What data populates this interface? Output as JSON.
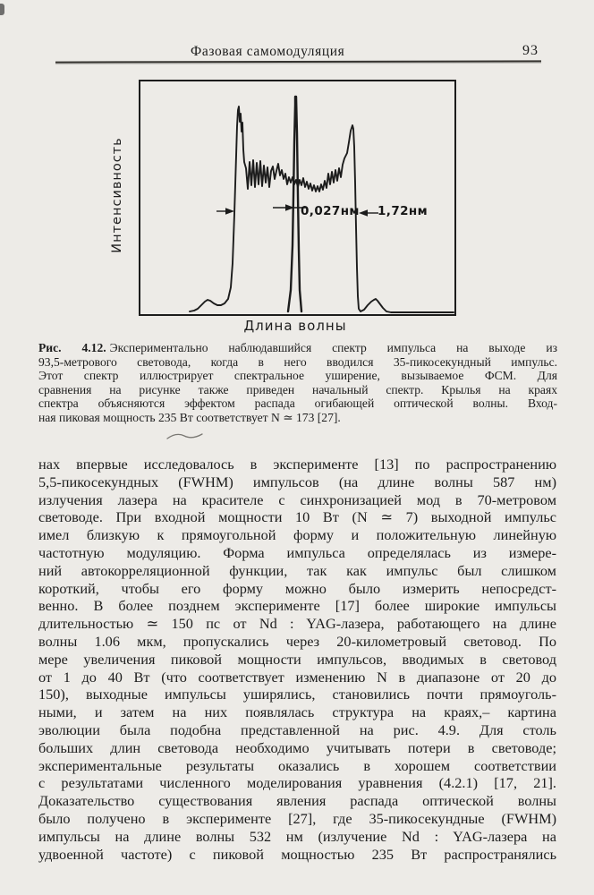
{
  "colors": {
    "paper": "#edebe7",
    "ink": "#1c1c1c"
  },
  "header": {
    "title": "Фазовая самомодуляция",
    "page_number": "93"
  },
  "figure": {
    "y_axis_label": "Интенсивность",
    "x_axis_label": "Длина волны",
    "annotations": {
      "narrow_label": "0,027нм",
      "wide_label": "1,72нм"
    },
    "chart": {
      "type": "line",
      "title": "Экспериментальный спектр импульса на выходе 93,5-метрового световода (уширение за счёт ФСМ) и начальный спектр",
      "xlabel": "Длина волны",
      "ylabel": "Интенсивность",
      "x_units": "нм",
      "grid": false,
      "legend": false,
      "series_meta": [
        {
          "name": "broad_spectrum",
          "description": "уширенный выходной спектр, полная ширина 1,72 нм, двугорбый с шумовой структурой"
        },
        {
          "name": "initial_spectrum",
          "description": "начальный (входной) узкий спектр, ширина 0,027 нм"
        }
      ],
      "annotation_values": [
        {
          "label": "0,027нм",
          "value_nm": 0.027,
          "refers_to": "initial_spectrum width"
        },
        {
          "label": "1,72нм",
          "value_nm": 1.72,
          "refers_to": "broad_spectrum width"
        }
      ],
      "curves": {
        "broad_spectrum": [
          [
            57,
            259
          ],
          [
            62,
            258
          ],
          [
            66,
            256
          ],
          [
            70,
            252
          ],
          [
            74,
            248
          ],
          [
            77,
            246
          ],
          [
            80,
            247
          ],
          [
            84,
            250
          ],
          [
            88,
            252
          ],
          [
            92,
            252
          ],
          [
            96,
            250
          ],
          [
            100,
            245
          ],
          [
            103,
            232
          ],
          [
            105,
            205
          ],
          [
            107,
            150
          ],
          [
            109,
            85
          ],
          [
            110,
            52
          ],
          [
            111,
            34
          ],
          [
            112,
            30
          ],
          [
            113,
            47
          ],
          [
            114,
            38
          ],
          [
            115,
            58
          ],
          [
            116,
            48
          ],
          [
            117,
            78
          ],
          [
            118,
            92
          ],
          [
            120,
            99
          ],
          [
            122,
            122
          ],
          [
            124,
            92
          ],
          [
            126,
            118
          ],
          [
            128,
            90
          ],
          [
            130,
            120
          ],
          [
            132,
            93
          ],
          [
            134,
            117
          ],
          [
            136,
            91
          ],
          [
            138,
            119
          ],
          [
            140,
            96
          ],
          [
            142,
            115
          ],
          [
            144,
            98
          ],
          [
            146,
            120
          ],
          [
            148,
            102
          ],
          [
            150,
            97
          ],
          [
            152,
            111
          ],
          [
            154,
            102
          ],
          [
            156,
            94
          ],
          [
            158,
            107
          ],
          [
            160,
            101
          ],
          [
            162,
            111
          ],
          [
            164,
            105
          ],
          [
            166,
            117
          ],
          [
            168,
            109
          ],
          [
            170,
            115
          ],
          [
            172,
            109
          ],
          [
            174,
            117
          ],
          [
            176,
            112
          ],
          [
            178,
            120
          ],
          [
            180,
            112
          ],
          [
            182,
            118
          ],
          [
            184,
            110
          ],
          [
            186,
            120
          ],
          [
            188,
            114
          ],
          [
            190,
            122
          ],
          [
            192,
            116
          ],
          [
            194,
            124
          ],
          [
            196,
            118
          ],
          [
            198,
            125
          ],
          [
            200,
            119
          ],
          [
            202,
            125
          ],
          [
            204,
            117
          ],
          [
            206,
            123
          ],
          [
            208,
            113
          ],
          [
            210,
            121
          ],
          [
            212,
            105
          ],
          [
            214,
            117
          ],
          [
            216,
            103
          ],
          [
            218,
            115
          ],
          [
            220,
            101
          ],
          [
            222,
            113
          ],
          [
            224,
            99
          ],
          [
            226,
            109
          ],
          [
            228,
            95
          ],
          [
            230,
            88
          ],
          [
            233,
            82
          ],
          [
            235,
            70
          ],
          [
            237,
            57
          ],
          [
            239,
            51
          ],
          [
            240,
            55
          ],
          [
            241,
            75
          ],
          [
            242,
            115
          ],
          [
            243,
            165
          ],
          [
            244,
            210
          ],
          [
            245,
            242
          ],
          [
            246,
            256
          ],
          [
            248,
            259
          ],
          [
            252,
            257
          ],
          [
            256,
            252
          ],
          [
            260,
            248
          ],
          [
            263,
            246
          ],
          [
            265,
            245
          ],
          [
            267,
            247
          ],
          [
            270,
            251
          ],
          [
            273,
            255
          ],
          [
            277,
            259
          ],
          [
            282,
            260
          ],
          [
            295,
            260
          ],
          [
            320,
            260
          ],
          [
            352,
            260
          ]
        ],
        "initial_spectrum": [
          [
            167,
            259
          ],
          [
            170,
            235
          ],
          [
            172,
            185
          ],
          [
            173,
            130
          ],
          [
            174,
            70
          ],
          [
            175,
            28
          ],
          [
            175,
            19
          ],
          [
            176,
            19
          ],
          [
            177,
            60
          ],
          [
            178,
            130
          ],
          [
            179,
            190
          ],
          [
            180,
            235
          ],
          [
            182,
            259
          ]
        ]
      }
    }
  },
  "caption": {
    "label": "Рис. 4.12.",
    "lines": [
      "Экспериментально наблюдавшийся спектр импульса на выходе из",
      "93,5-метрового световода, когда в него вводился 35-пикосекундный импульс.",
      "Этот спектр иллюстрирует спектральное уширение, вызываемое ФСМ. Для",
      "сравнения на рисунке также приведен начальный спектр. Крылья на краях",
      "спектра объясняются эффектом распада огибающей оптической волны. Вход-",
      "ная пиковая мощность 235 Вт соответствует N ≃ 173 [27]."
    ]
  },
  "body": {
    "lines": [
      "нах впервые исследовалось в эксперименте [13] по распространению",
      "5,5-пикосекундных (FWHM) импульсов (на длине волны 587 нм)",
      "излучения лазера на красителе с синхронизацией мод в 70-метровом",
      "световоде. При входной мощности 10 Вт (N ≃ 7) выходной импульс",
      "имел близкую к прямоугольной форму и положительную линейную",
      "частотную модуляцию. Форма импульса определялась из измере-",
      "ний автокорреляционной функции, так как импульс был слишком",
      "короткий, чтобы его форму можно было измерить непосредст-",
      "венно. В более позднем эксперименте [17] более широкие импульсы",
      "длительностью ≃ 150 пс от Nd : YAG-лазера, работающего на длине",
      "волны 1.06 мкм, пропускались через 20-километровый световод. По",
      "мере увеличения пиковой мощности импульсов, вводимых в световод",
      "от 1 до 40 Вт (что соответствует изменению N в диапазоне от 20 до",
      "150), выходные импульсы уширялись, становились почти прямоуголь-",
      "ными, и затем на них появлялась структура на краях,– картина",
      "эволюции была подобна представленной на рис. 4.9. Для столь",
      "больших длин световода необходимо учитывать потери в световоде;",
      "экспериментальные результаты оказались в хорошем соответствии",
      "с результатами численного моделирования уравнения (4.2.1) [17, 21].",
      "Доказательство существования явления распада оптической волны",
      "было получено в эксперименте [27], где 35-пикосекундные (FWHM)",
      "импульсы на длине волны 532 нм (излучение Nd : YAG-лазера на",
      "удвоенной частоте) с пиковой мощностью 235 Вт распространялись"
    ]
  }
}
